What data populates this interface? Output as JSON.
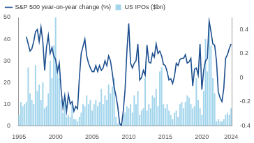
{
  "chart_data": {
    "type": "bar",
    "categories": [
      "1995",
      null,
      null,
      null,
      null,
      null,
      null,
      null,
      null,
      null,
      null,
      null,
      null,
      null,
      null,
      null,
      null,
      null,
      null,
      null,
      "2000",
      null,
      null,
      null,
      null,
      null,
      null,
      null,
      null,
      null,
      null,
      null,
      null,
      null,
      null,
      null,
      null,
      null,
      null,
      null,
      "2005",
      null,
      null,
      null,
      null,
      null,
      null,
      null,
      null,
      null,
      null,
      null,
      null,
      null,
      null,
      null,
      null,
      null,
      null,
      null,
      "2010",
      null,
      null,
      null,
      null,
      null,
      null,
      null,
      null,
      null,
      null,
      null,
      null,
      null,
      null,
      null,
      null,
      null,
      null,
      null,
      "2015",
      null,
      null,
      null,
      null,
      null,
      null,
      null,
      null,
      null,
      null,
      null,
      null,
      null,
      null,
      null,
      null,
      null,
      null,
      null,
      "2020",
      null,
      null,
      null,
      null,
      null,
      null,
      null,
      null,
      null,
      null,
      null,
      null,
      null,
      null,
      null,
      "2024"
    ],
    "series": [
      {
        "name": "US IPOs ($bn)",
        "type": "bar",
        "color": "#a3d5ec",
        "values": [
          5,
          11,
          9,
          10,
          11,
          27,
          15,
          12,
          10,
          28,
          16,
          19,
          12,
          20,
          8,
          9,
          15,
          30,
          22,
          37,
          50,
          28,
          22,
          12,
          6,
          12,
          4,
          5,
          4,
          10,
          3,
          3,
          2,
          4,
          6,
          10,
          9,
          14,
          10,
          12,
          7,
          10,
          12,
          9,
          11,
          17,
          10,
          14,
          12,
          19,
          15,
          18,
          22,
          4,
          1,
          1,
          1,
          5,
          6,
          9,
          8,
          10,
          6,
          14,
          10,
          16,
          5,
          7,
          8,
          22,
          7,
          10,
          8,
          14,
          13,
          17,
          9,
          25,
          27,
          10,
          8,
          10,
          7,
          5,
          3,
          6,
          7,
          4,
          10,
          11,
          8,
          11,
          14,
          13,
          10,
          8,
          9,
          22,
          12,
          8,
          5,
          16,
          40,
          25,
          47,
          37,
          22,
          15,
          2,
          3,
          2,
          2,
          3,
          5,
          6,
          5,
          8
        ]
      },
      {
        "name": "S&P 500 year-on-year change (%)",
        "type": "line",
        "axis": "y2",
        "color": "#1d4f8f",
        "values": [
          null,
          null,
          null,
          null,
          0.34,
          0.28,
          0.22,
          0.24,
          0.3,
          0.38,
          0.4,
          0.3,
          0.42,
          0.3,
          0.06,
          0.25,
          0.35,
          0.2,
          0.25,
          0.18,
          0.15,
          0.05,
          0.12,
          -0.1,
          -0.25,
          -0.15,
          -0.28,
          -0.14,
          -0.22,
          -0.2,
          -0.28,
          -0.24,
          -0.26,
          0.0,
          0.2,
          0.26,
          0.32,
          0.18,
          0.12,
          0.08,
          0.05,
          0.05,
          0.1,
          0.05,
          0.1,
          0.06,
          0.08,
          0.14,
          0.1,
          0.18,
          0.14,
          0.04,
          -0.08,
          -0.15,
          -0.24,
          -0.38,
          -0.4,
          -0.28,
          -0.1,
          0.22,
          0.45,
          0.12,
          0.08,
          0.12,
          0.14,
          0.28,
          -0.02,
          0.0,
          0.06,
          0.02,
          0.27,
          0.13,
          0.12,
          0.2,
          0.17,
          0.28,
          0.2,
          0.22,
          0.18,
          0.11,
          0.1,
          0.05,
          -0.02,
          -0.01,
          -0.05,
          0.01,
          0.12,
          0.1,
          0.15,
          0.16,
          0.16,
          0.19,
          0.12,
          0.13,
          0.16,
          -0.07,
          0.07,
          0.08,
          0.02,
          0.28,
          -0.1,
          0.06,
          0.14,
          0.16,
          0.47,
          0.38,
          0.28,
          0.27,
          0.14,
          -0.12,
          -0.17,
          -0.2,
          -0.09,
          0.16,
          0.19,
          0.24,
          0.28
        ]
      }
    ],
    "ylim": [
      0,
      50
    ],
    "yticks": [
      0,
      10,
      20,
      30,
      40,
      50
    ],
    "y2lim": [
      -0.4,
      0.5
    ],
    "y2ticks": [
      -0.4,
      -0.2,
      0,
      0.2,
      0.4
    ],
    "grid": false,
    "legend": "top left"
  }
}
